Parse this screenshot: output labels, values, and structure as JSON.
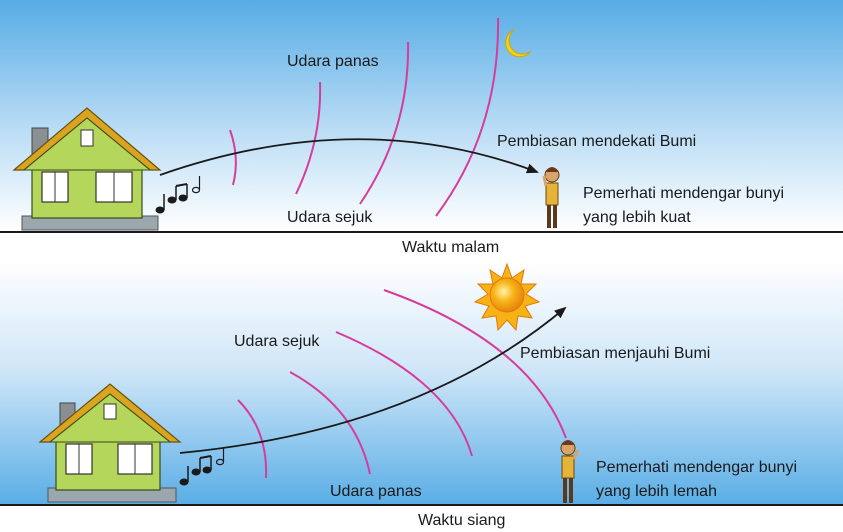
{
  "panels": {
    "night": {
      "caption": "Waktu malam",
      "hot_air_label": "Udara panas",
      "cool_air_label": "Udara sejuk",
      "refraction_label": "Pembiasan mendekati Bumi",
      "observer_label_line1": "Pemerhati mendengar bunyi",
      "observer_label_line2": "yang lebih kuat",
      "celestial_icon": "moon-icon"
    },
    "day": {
      "caption": "Waktu siang",
      "cool_air_label": "Udara sejuk",
      "hot_air_label": "Udara panas",
      "refraction_label": "Pembiasan menjauhi Bumi",
      "observer_label_line1": "Pemerhati mendengar bunyi",
      "observer_label_line2": "yang lebih lemah",
      "celestial_icon": "sun-icon"
    }
  },
  "colors": {
    "sky_top": "#5aaee6",
    "sky_bottom": "#ffffff",
    "wavefront": "#d63d9a",
    "house_wall": "#b4d65a",
    "house_roof": "#d9a521",
    "sun": "#f7b316",
    "moon": "#f2d21c",
    "ray": "#1a1a1a"
  }
}
